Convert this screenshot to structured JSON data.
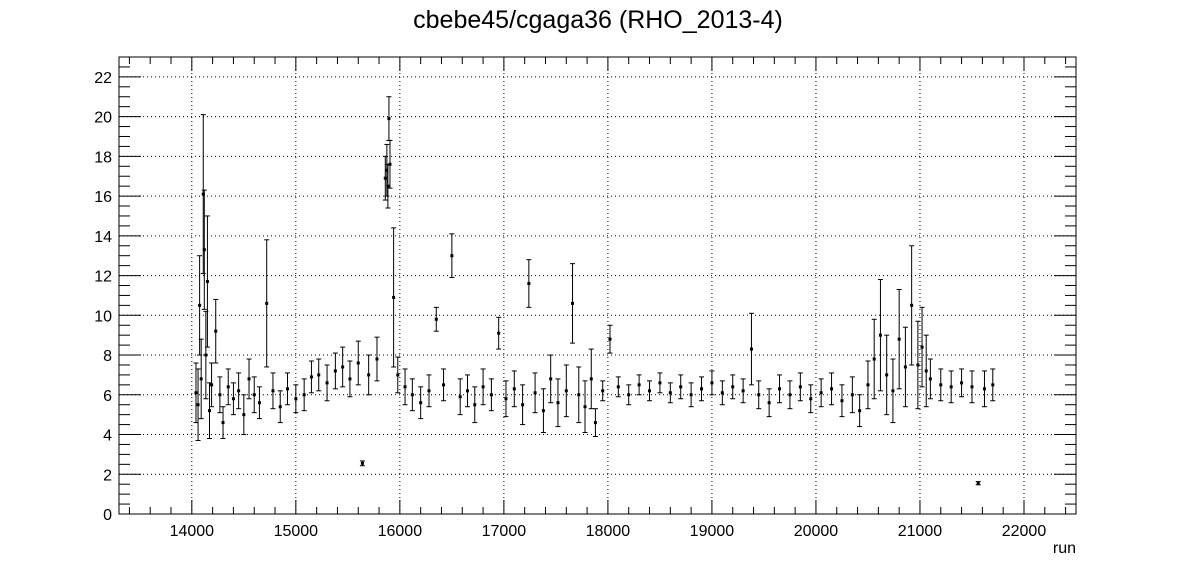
{
  "chart_data": {
    "type": "scatter",
    "title": "cbebe45/cgaga36 (RHO_2013-4)",
    "xlabel": "run",
    "ylabel": "",
    "xlim": [
      13300,
      22500
    ],
    "ylim": [
      0,
      23
    ],
    "x_ticks": [
      14000,
      15000,
      16000,
      17000,
      18000,
      19000,
      20000,
      21000,
      22000
    ],
    "x_tick_labels": [
      "14000",
      "15000",
      "16000",
      "17000",
      "18000",
      "19000",
      "20000",
      "21000",
      "22000"
    ],
    "y_ticks": [
      0,
      2,
      4,
      6,
      8,
      10,
      12,
      14,
      16,
      18,
      20,
      22
    ],
    "y_tick_labels": [
      "0",
      "2",
      "4",
      "6",
      "8",
      "10",
      "12",
      "14",
      "16",
      "18",
      "20",
      "22"
    ],
    "grid": true,
    "marker_color": "#000000",
    "series": [
      {
        "points": [
          {
            "x": 14040,
            "y": 6.1,
            "err": 1.5
          },
          {
            "x": 14060,
            "y": 5.5,
            "err": 1.8
          },
          {
            "x": 14075,
            "y": 10.5,
            "err": 2.5
          },
          {
            "x": 14090,
            "y": 6.8,
            "err": 2.0
          },
          {
            "x": 14110,
            "y": 16.1,
            "err": 4.0
          },
          {
            "x": 14120,
            "y": 13.3,
            "err": 3.0
          },
          {
            "x": 14135,
            "y": 8.0,
            "err": 2.2
          },
          {
            "x": 14150,
            "y": 11.7,
            "err": 3.3
          },
          {
            "x": 14170,
            "y": 5.2,
            "err": 1.4
          },
          {
            "x": 14190,
            "y": 6.5,
            "err": 1.1
          },
          {
            "x": 14230,
            "y": 9.2,
            "err": 1.6
          },
          {
            "x": 14270,
            "y": 6.0,
            "err": 0.9
          },
          {
            "x": 14300,
            "y": 4.6,
            "err": 0.8
          },
          {
            "x": 14350,
            "y": 6.4,
            "err": 0.9
          },
          {
            "x": 14400,
            "y": 5.8,
            "err": 0.8
          },
          {
            "x": 14450,
            "y": 6.2,
            "err": 0.9
          },
          {
            "x": 14500,
            "y": 5.0,
            "err": 1.0
          },
          {
            "x": 14550,
            "y": 6.8,
            "err": 1.0
          },
          {
            "x": 14600,
            "y": 6.0,
            "err": 0.9
          },
          {
            "x": 14650,
            "y": 5.6,
            "err": 0.8
          },
          {
            "x": 14720,
            "y": 10.6,
            "err": 3.2
          },
          {
            "x": 14780,
            "y": 6.2,
            "err": 0.9
          },
          {
            "x": 14850,
            "y": 5.4,
            "err": 0.8
          },
          {
            "x": 14920,
            "y": 6.3,
            "err": 0.8
          },
          {
            "x": 15000,
            "y": 5.8,
            "err": 0.7
          },
          {
            "x": 15080,
            "y": 6.0,
            "err": 0.8
          },
          {
            "x": 15150,
            "y": 6.9,
            "err": 0.8
          },
          {
            "x": 15220,
            "y": 7.0,
            "err": 0.8
          },
          {
            "x": 15300,
            "y": 6.6,
            "err": 0.9
          },
          {
            "x": 15380,
            "y": 7.2,
            "err": 0.9
          },
          {
            "x": 15450,
            "y": 7.4,
            "err": 1.0
          },
          {
            "x": 15520,
            "y": 6.8,
            "err": 0.9
          },
          {
            "x": 15600,
            "y": 7.6,
            "err": 1.1
          },
          {
            "x": 15640,
            "y": 2.55,
            "err": 0.12
          },
          {
            "x": 15700,
            "y": 7.0,
            "err": 1.0
          },
          {
            "x": 15780,
            "y": 7.8,
            "err": 1.1
          },
          {
            "x": 15860,
            "y": 16.9,
            "err": 1.1
          },
          {
            "x": 15875,
            "y": 17.3,
            "err": 1.3
          },
          {
            "x": 15885,
            "y": 16.5,
            "err": 1.1
          },
          {
            "x": 15895,
            "y": 19.9,
            "err": 1.1
          },
          {
            "x": 15905,
            "y": 17.6,
            "err": 1.2
          },
          {
            "x": 15940,
            "y": 10.9,
            "err": 3.5
          },
          {
            "x": 15980,
            "y": 7.0,
            "err": 0.9
          },
          {
            "x": 16050,
            "y": 6.4,
            "err": 0.9
          },
          {
            "x": 16120,
            "y": 6.0,
            "err": 0.8
          },
          {
            "x": 16200,
            "y": 5.6,
            "err": 0.8
          },
          {
            "x": 16280,
            "y": 6.2,
            "err": 0.8
          },
          {
            "x": 16350,
            "y": 9.8,
            "err": 0.6
          },
          {
            "x": 16420,
            "y": 6.5,
            "err": 0.8
          },
          {
            "x": 16500,
            "y": 13.0,
            "err": 1.1
          },
          {
            "x": 16580,
            "y": 5.9,
            "err": 0.9
          },
          {
            "x": 16650,
            "y": 6.2,
            "err": 0.8
          },
          {
            "x": 16720,
            "y": 5.5,
            "err": 0.9
          },
          {
            "x": 16800,
            "y": 6.4,
            "err": 0.9
          },
          {
            "x": 16880,
            "y": 6.0,
            "err": 0.8
          },
          {
            "x": 16950,
            "y": 9.1,
            "err": 0.8
          },
          {
            "x": 17020,
            "y": 5.8,
            "err": 0.9
          },
          {
            "x": 17100,
            "y": 6.3,
            "err": 0.9
          },
          {
            "x": 17180,
            "y": 5.5,
            "err": 1.0
          },
          {
            "x": 17240,
            "y": 11.6,
            "err": 1.2
          },
          {
            "x": 17300,
            "y": 6.1,
            "err": 1.0
          },
          {
            "x": 17380,
            "y": 5.2,
            "err": 1.1
          },
          {
            "x": 17450,
            "y": 6.8,
            "err": 1.2
          },
          {
            "x": 17520,
            "y": 5.6,
            "err": 1.2
          },
          {
            "x": 17600,
            "y": 6.2,
            "err": 1.3
          },
          {
            "x": 17660,
            "y": 10.6,
            "err": 2.0
          },
          {
            "x": 17720,
            "y": 6.0,
            "err": 1.4
          },
          {
            "x": 17780,
            "y": 5.4,
            "err": 1.3
          },
          {
            "x": 17840,
            "y": 6.8,
            "err": 1.5
          },
          {
            "x": 17880,
            "y": 4.6,
            "err": 0.7
          },
          {
            "x": 17950,
            "y": 6.2,
            "err": 0.5
          },
          {
            "x": 18020,
            "y": 8.8,
            "err": 0.7
          },
          {
            "x": 18100,
            "y": 6.4,
            "err": 0.5
          },
          {
            "x": 18200,
            "y": 6.0,
            "err": 0.5
          },
          {
            "x": 18300,
            "y": 6.5,
            "err": 0.5
          },
          {
            "x": 18400,
            "y": 6.2,
            "err": 0.5
          },
          {
            "x": 18500,
            "y": 6.6,
            "err": 0.5
          },
          {
            "x": 18600,
            "y": 6.1,
            "err": 0.5
          },
          {
            "x": 18700,
            "y": 6.4,
            "err": 0.6
          },
          {
            "x": 18800,
            "y": 6.0,
            "err": 0.6
          },
          {
            "x": 18900,
            "y": 6.3,
            "err": 0.6
          },
          {
            "x": 19000,
            "y": 6.6,
            "err": 0.6
          },
          {
            "x": 19100,
            "y": 6.1,
            "err": 0.6
          },
          {
            "x": 19200,
            "y": 6.4,
            "err": 0.6
          },
          {
            "x": 19300,
            "y": 6.2,
            "err": 0.6
          },
          {
            "x": 19380,
            "y": 8.3,
            "err": 1.8
          },
          {
            "x": 19450,
            "y": 6.0,
            "err": 0.7
          },
          {
            "x": 19550,
            "y": 5.6,
            "err": 0.7
          },
          {
            "x": 19650,
            "y": 6.3,
            "err": 0.7
          },
          {
            "x": 19750,
            "y": 6.0,
            "err": 0.7
          },
          {
            "x": 19850,
            "y": 6.4,
            "err": 0.7
          },
          {
            "x": 19950,
            "y": 5.8,
            "err": 0.7
          },
          {
            "x": 20050,
            "y": 6.1,
            "err": 0.7
          },
          {
            "x": 20150,
            "y": 6.3,
            "err": 0.8
          },
          {
            "x": 20250,
            "y": 5.7,
            "err": 0.8
          },
          {
            "x": 20350,
            "y": 6.0,
            "err": 0.9
          },
          {
            "x": 20420,
            "y": 5.2,
            "err": 0.8
          },
          {
            "x": 20500,
            "y": 6.5,
            "err": 1.2
          },
          {
            "x": 20560,
            "y": 7.8,
            "err": 2.0
          },
          {
            "x": 20620,
            "y": 9.0,
            "err": 2.8
          },
          {
            "x": 20680,
            "y": 7.0,
            "err": 2.0
          },
          {
            "x": 20740,
            "y": 6.2,
            "err": 1.6
          },
          {
            "x": 20800,
            "y": 8.8,
            "err": 2.5
          },
          {
            "x": 20860,
            "y": 7.4,
            "err": 2.0
          },
          {
            "x": 20920,
            "y": 10.5,
            "err": 3.0
          },
          {
            "x": 20980,
            "y": 7.5,
            "err": 2.2
          },
          {
            "x": 21020,
            "y": 8.4,
            "err": 2.0
          },
          {
            "x": 21060,
            "y": 7.2,
            "err": 1.8
          },
          {
            "x": 21100,
            "y": 6.8,
            "err": 1.0
          },
          {
            "x": 21200,
            "y": 6.5,
            "err": 0.8
          },
          {
            "x": 21300,
            "y": 6.4,
            "err": 0.8
          },
          {
            "x": 21400,
            "y": 6.6,
            "err": 0.7
          },
          {
            "x": 21500,
            "y": 6.4,
            "err": 0.8
          },
          {
            "x": 21560,
            "y": 1.55,
            "err": 0.08
          },
          {
            "x": 21620,
            "y": 6.3,
            "err": 0.9
          },
          {
            "x": 21700,
            "y": 6.5,
            "err": 0.8
          }
        ]
      }
    ]
  }
}
